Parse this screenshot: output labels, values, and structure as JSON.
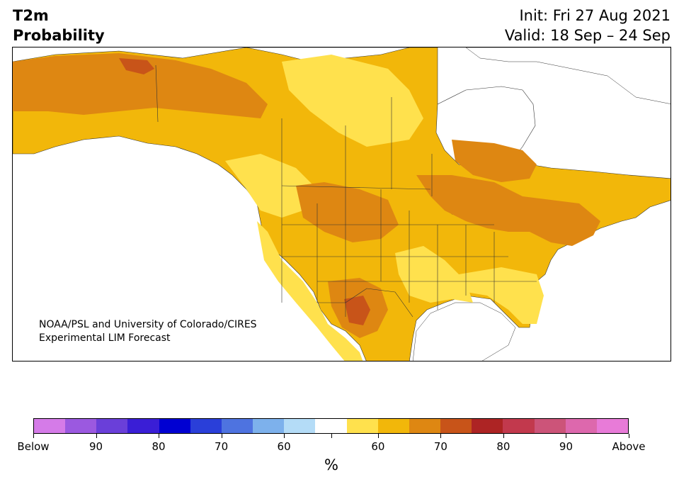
{
  "title": {
    "variable": "T2m",
    "product": "Probability"
  },
  "init": "Init: Fri 27 Aug 2021",
  "valid": "Valid: 18 Sep – 24 Sep",
  "credit": {
    "line1": "NOAA/PSL and University of Colorado/CIRES",
    "line2": "Experimental LIM Forecast"
  },
  "legend": {
    "unit": "%",
    "colors": [
      "#d57be8",
      "#9b59e0",
      "#6a3fd9",
      "#3a1ed6",
      "#0000d2",
      "#2a3fd9",
      "#4e73e0",
      "#7db1ec",
      "#b4dcf7",
      "#ffffff",
      "#ffe14d",
      "#f2b70a",
      "#de8712",
      "#c85419",
      "#ad2424",
      "#c2394d",
      "#cc5479",
      "#dd68ad",
      "#e87bd8"
    ],
    "labels": [
      "Below",
      "90",
      "80",
      "70",
      "60",
      "",
      "60",
      "70",
      "80",
      "90",
      "Above"
    ]
  },
  "map": {
    "region": "North America",
    "colors": {
      "light": "#ffe14d",
      "medium": "#f2b70a",
      "strong": "#de8712",
      "stronger": "#c85419",
      "water": "#ffffff"
    }
  }
}
